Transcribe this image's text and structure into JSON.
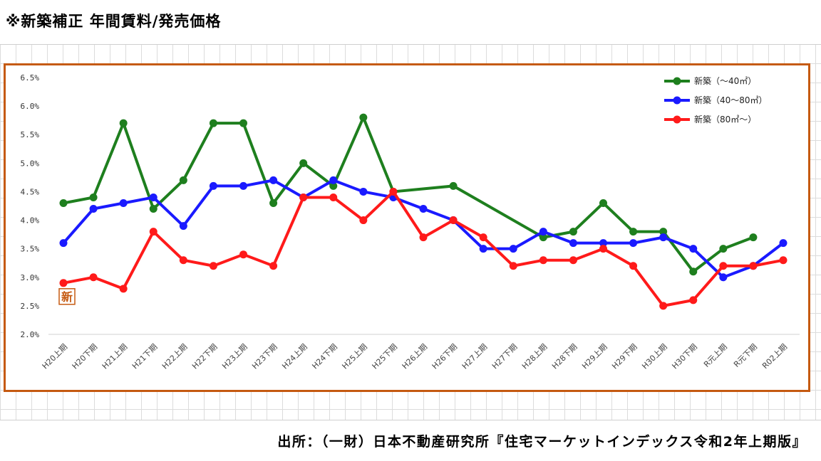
{
  "heading": "※新築補正 年間賃料/発売価格",
  "source": "出所：（一財）日本不動産研究所『住宅マーケットインデックス令和2年上期版』",
  "marker_label": "新",
  "colors": {
    "frame": "#c55a11",
    "green": "#1e7f1e",
    "blue": "#1a1aff",
    "red": "#ff1a1a"
  },
  "chart_data": {
    "type": "line",
    "title": "",
    "xlabel": "",
    "ylabel": "",
    "ylim": [
      2.0,
      6.5
    ],
    "yticks": [
      "2.0%",
      "2.5%",
      "3.0%",
      "3.5%",
      "4.0%",
      "4.5%",
      "5.0%",
      "5.5%",
      "6.0%",
      "6.5%"
    ],
    "grid": "horizontal-baseline",
    "legend_position": "top-right",
    "categories": [
      "H20上期",
      "H20下期",
      "H21上期",
      "H21下期",
      "H22上期",
      "H22下期",
      "H23上期",
      "H23下期",
      "H24上期",
      "H24下期",
      "H25上期",
      "H25下期",
      "H26上期",
      "H26下期",
      "H27上期",
      "H27下期",
      "H28上期",
      "H28下期",
      "H29上期",
      "H29下期",
      "H30上期",
      "H30下期",
      "R元上期",
      "R元下期",
      "R02上期"
    ],
    "series": [
      {
        "name": "新築（～40㎡）",
        "color": "#1e7f1e",
        "values": [
          4.3,
          4.4,
          5.7,
          4.2,
          4.7,
          5.7,
          5.7,
          4.3,
          5.0,
          4.6,
          5.8,
          4.5,
          null,
          4.6,
          null,
          null,
          3.7,
          3.8,
          4.3,
          3.8,
          3.8,
          3.1,
          3.5,
          3.7,
          null
        ]
      },
      {
        "name": "新築（40～80㎡）",
        "color": "#1a1aff",
        "values": [
          3.6,
          4.2,
          4.3,
          4.4,
          3.9,
          4.6,
          4.6,
          4.7,
          4.4,
          4.7,
          4.5,
          4.4,
          4.2,
          4.0,
          3.5,
          3.5,
          3.8,
          3.6,
          3.6,
          3.6,
          3.7,
          3.5,
          3.0,
          3.2,
          3.6
        ]
      },
      {
        "name": "新築（80㎡～）",
        "color": "#ff1a1a",
        "values": [
          2.9,
          3.0,
          2.8,
          3.8,
          3.3,
          3.2,
          3.4,
          3.2,
          4.4,
          4.4,
          4.0,
          4.5,
          3.7,
          4.0,
          3.7,
          3.2,
          3.3,
          3.3,
          3.5,
          3.2,
          2.5,
          2.6,
          3.2,
          3.2,
          3.3
        ]
      }
    ]
  }
}
